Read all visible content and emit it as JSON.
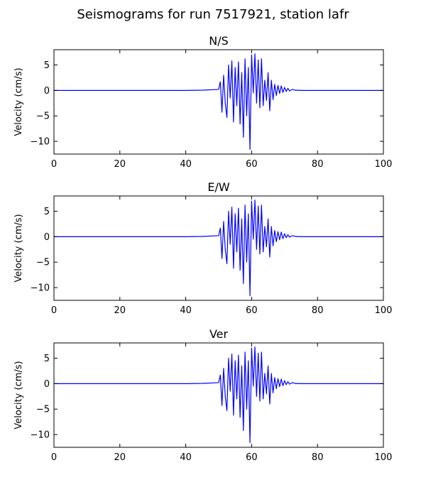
{
  "figure": {
    "title": "Seismograms for run 7517921, station lafr"
  },
  "style": {
    "line_color": "#0000ff",
    "axes_color": "#000000",
    "background": "#ffffff"
  },
  "chart_data": [
    {
      "type": "line",
      "title": "N/S",
      "xlabel": "",
      "ylabel": "Velocity (cm/s)",
      "xlim": [
        0,
        100
      ],
      "ylim": [
        -12.5,
        8
      ],
      "xticks": [
        0,
        20,
        40,
        60,
        80,
        100
      ],
      "yticks": [
        5,
        0,
        -5,
        -10
      ],
      "grid": false,
      "series": [
        {
          "x": [
            0,
            10,
            20,
            30,
            40,
            45,
            50,
            50.5,
            51,
            51.5,
            52,
            52.5,
            53,
            53.5,
            54,
            54.5,
            55,
            55.5,
            56,
            56.5,
            57,
            57.5,
            58,
            58.5,
            59,
            59.5,
            60,
            60.5,
            61,
            61.5,
            62,
            62.5,
            63,
            63.5,
            64,
            64.5,
            65,
            65.5,
            66,
            66.5,
            67,
            67.5,
            68,
            68.5,
            69,
            69.5,
            70,
            70.5,
            71,
            71.5,
            72,
            72.5,
            73,
            73.5,
            74,
            75,
            78,
            80,
            85,
            90,
            95,
            100
          ],
          "y": [
            0,
            0,
            0,
            0,
            0,
            0.05,
            0.2,
            1.7,
            -4.3,
            3.0,
            -2.5,
            -5.3,
            5.0,
            -1.5,
            5.8,
            -6.2,
            4.5,
            -3.0,
            5.6,
            -6.6,
            3.5,
            -9.2,
            6.2,
            -5.0,
            4.5,
            -11.6,
            7.0,
            -0.5,
            7.2,
            -2.5,
            6.0,
            -3.4,
            6.2,
            -3.0,
            2.0,
            -2.0,
            3.5,
            -4.0,
            2.0,
            -1.8,
            1.2,
            -1.0,
            1.0,
            -0.6,
            0.9,
            -0.4,
            0.6,
            -0.2,
            0.4,
            -0.1,
            0.1,
            0.2,
            0.1,
            0,
            0.05,
            0,
            0,
            0,
            0,
            0,
            0,
            0
          ]
        }
      ]
    },
    {
      "type": "line",
      "title": "E/W",
      "xlabel": "",
      "ylabel": "Velocity (cm/s)",
      "xlim": [
        0,
        100
      ],
      "ylim": [
        -12.5,
        8
      ],
      "xticks": [
        0,
        20,
        40,
        60,
        80,
        100
      ],
      "yticks": [
        5,
        0,
        -5,
        -10
      ],
      "grid": false,
      "series": [
        {
          "x": [
            0,
            10,
            20,
            30,
            40,
            45,
            50,
            50.5,
            51,
            51.5,
            52,
            52.5,
            53,
            53.5,
            54,
            54.5,
            55,
            55.5,
            56,
            56.5,
            57,
            57.5,
            58,
            58.5,
            59,
            59.5,
            60,
            60.5,
            61,
            61.5,
            62,
            62.5,
            63,
            63.5,
            64,
            64.5,
            65,
            65.5,
            66,
            66.5,
            67,
            67.5,
            68,
            68.5,
            69,
            69.5,
            70,
            70.5,
            71,
            71.5,
            72,
            72.5,
            73,
            73.5,
            74,
            75,
            78,
            80,
            85,
            90,
            95,
            100
          ],
          "y": [
            0,
            0,
            0,
            0,
            0,
            0.05,
            0.2,
            1.7,
            -4.3,
            3.0,
            -2.5,
            -5.3,
            5.0,
            -1.5,
            5.8,
            -6.2,
            4.5,
            -3.0,
            5.6,
            -6.6,
            3.5,
            -9.2,
            6.2,
            -5.0,
            4.5,
            -11.6,
            7.0,
            -0.5,
            7.2,
            -2.5,
            6.0,
            -3.4,
            6.2,
            -3.0,
            2.0,
            -2.0,
            3.5,
            -4.0,
            2.0,
            -1.8,
            1.2,
            -1.0,
            1.0,
            -0.6,
            0.9,
            -0.4,
            0.6,
            -0.2,
            0.4,
            -0.1,
            0.1,
            0.2,
            0.1,
            0,
            0.05,
            0,
            0,
            0,
            0,
            0,
            0,
            0
          ]
        }
      ]
    },
    {
      "type": "line",
      "title": "Ver",
      "xlabel": "",
      "ylabel": "Velocity (cm/s)",
      "xlim": [
        0,
        100
      ],
      "ylim": [
        -12.5,
        8
      ],
      "xticks": [
        0,
        20,
        40,
        60,
        80,
        100
      ],
      "yticks": [
        5,
        0,
        -5,
        -10
      ],
      "grid": false,
      "series": [
        {
          "x": [
            0,
            10,
            20,
            30,
            40,
            45,
            50,
            50.5,
            51,
            51.5,
            52,
            52.5,
            53,
            53.5,
            54,
            54.5,
            55,
            55.5,
            56,
            56.5,
            57,
            57.5,
            58,
            58.5,
            59,
            59.5,
            60,
            60.5,
            61,
            61.5,
            62,
            62.5,
            63,
            63.5,
            64,
            64.5,
            65,
            65.5,
            66,
            66.5,
            67,
            67.5,
            68,
            68.5,
            69,
            69.5,
            70,
            70.5,
            71,
            71.5,
            72,
            72.5,
            73,
            73.5,
            74,
            75,
            78,
            80,
            85,
            90,
            95,
            100
          ],
          "y": [
            0,
            0,
            0,
            0,
            0,
            0.05,
            0.2,
            1.7,
            -4.3,
            3.0,
            -2.5,
            -5.3,
            5.0,
            -1.5,
            5.8,
            -6.2,
            4.5,
            -3.0,
            5.6,
            -6.6,
            3.5,
            -9.2,
            6.2,
            -5.0,
            4.5,
            -11.6,
            7.0,
            -0.5,
            7.2,
            -2.5,
            6.0,
            -3.4,
            6.2,
            -3.0,
            2.0,
            -2.0,
            3.5,
            -4.0,
            2.0,
            -1.8,
            1.2,
            -1.0,
            1.0,
            -0.6,
            0.9,
            -0.4,
            0.6,
            -0.2,
            0.4,
            -0.1,
            0.1,
            0.2,
            0.1,
            0,
            0.05,
            0,
            0,
            0,
            0,
            0,
            0,
            0
          ]
        }
      ]
    }
  ]
}
